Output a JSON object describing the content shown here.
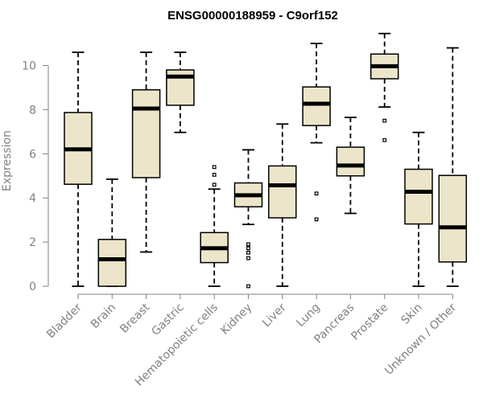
{
  "chart_data": {
    "type": "boxplot",
    "title": "ENSG00000188959 - C9orf152",
    "xlabel": "",
    "ylabel": "Expression",
    "ylim": [
      0,
      11.5
    ],
    "yticks": [
      0,
      2,
      4,
      6,
      8,
      10
    ],
    "categories": [
      "Bladder",
      "Brain",
      "Breast",
      "Gastric",
      "Hematopoietic cells",
      "Kidney",
      "Liver",
      "Lung",
      "Pancreas",
      "Prostate",
      "Skin",
      "Unknown / Other"
    ],
    "boxes": [
      {
        "min": 0.0,
        "q1": 4.62,
        "median": 6.2,
        "q3": 7.87,
        "max": 10.6,
        "outliers": []
      },
      {
        "min": 0.0,
        "q1": 0.0,
        "median": 1.22,
        "q3": 2.12,
        "max": 4.85,
        "outliers": []
      },
      {
        "min": 1.55,
        "q1": 4.92,
        "median": 8.05,
        "q3": 8.9,
        "max": 10.6,
        "outliers": []
      },
      {
        "min": 6.97,
        "q1": 8.2,
        "median": 9.5,
        "q3": 9.8,
        "max": 10.6,
        "outliers": []
      },
      {
        "min": 0.0,
        "q1": 1.07,
        "median": 1.72,
        "q3": 2.43,
        "max": 4.4,
        "outliers": [
          4.6,
          5.05,
          5.4
        ]
      },
      {
        "min": 2.8,
        "q1": 3.6,
        "median": 4.12,
        "q3": 4.68,
        "max": 6.18,
        "outliers": [
          0.0,
          1.27,
          1.52,
          1.72,
          1.9
        ]
      },
      {
        "min": 0.0,
        "q1": 3.1,
        "median": 4.57,
        "q3": 5.45,
        "max": 7.35,
        "outliers": []
      },
      {
        "min": 6.5,
        "q1": 7.28,
        "median": 8.27,
        "q3": 9.03,
        "max": 11.0,
        "outliers": [
          3.03,
          4.2
        ]
      },
      {
        "min": 3.3,
        "q1": 5.0,
        "median": 5.47,
        "q3": 6.3,
        "max": 7.65,
        "outliers": []
      },
      {
        "min": 8.12,
        "q1": 9.4,
        "median": 9.97,
        "q3": 10.52,
        "max": 11.45,
        "outliers": [
          6.62,
          7.5
        ]
      },
      {
        "min": 0.0,
        "q1": 2.82,
        "median": 4.28,
        "q3": 5.3,
        "max": 6.97,
        "outliers": []
      },
      {
        "min": 0.0,
        "q1": 1.1,
        "median": 2.67,
        "q3": 5.02,
        "max": 10.8,
        "outliers": []
      }
    ],
    "grid": false,
    "legend": "none"
  }
}
